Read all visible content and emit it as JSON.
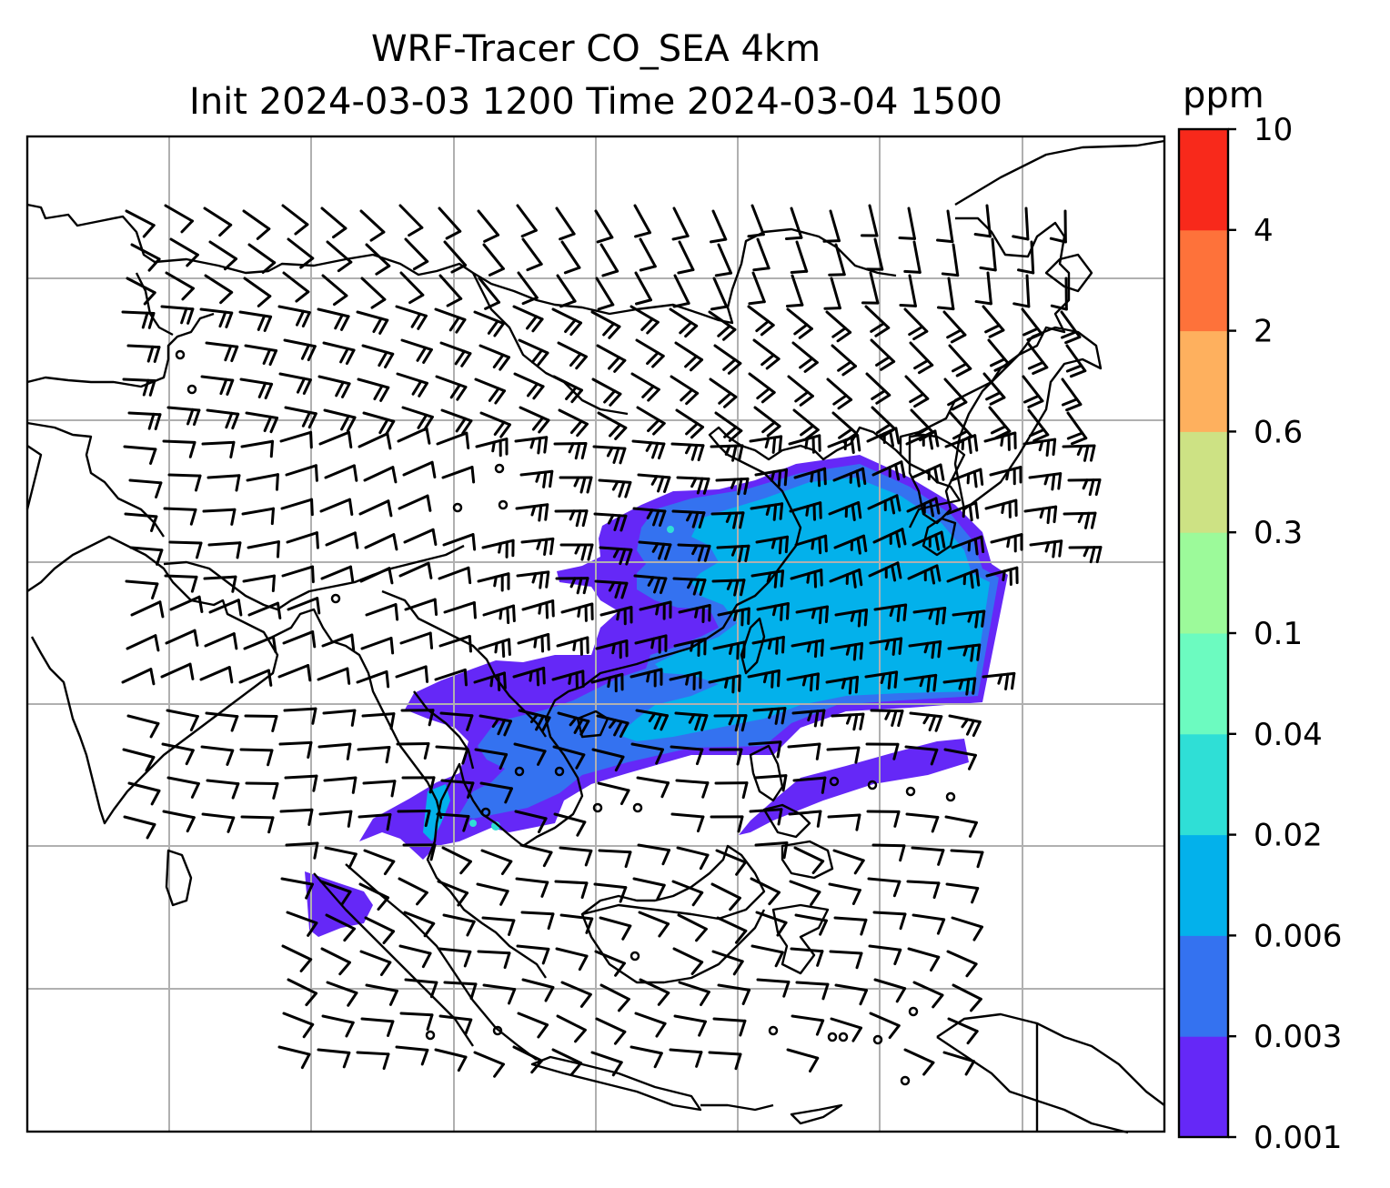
{
  "title": {
    "line1": "WRF-Tracer CO_SEA 4km",
    "line2": "Init 2024-03-03 1200 Time 2024-03-04 1500"
  },
  "colorbar": {
    "unit": "ppm",
    "levels": [
      "0.001",
      "0.003",
      "0.006",
      "0.02",
      "0.04",
      "0.1",
      "0.3",
      "0.6",
      "2",
      "4",
      "10"
    ],
    "colors": [
      "#6528f7",
      "#3472f0",
      "#03b1eb",
      "#2fdfd6",
      "#6cfbc0",
      "#9cfa9a",
      "#cde284",
      "#feb05e",
      "#fe723a",
      "#f8291b"
    ]
  },
  "map": {
    "gridline_color": "#b0b0b0",
    "coastline_color": "#000000",
    "wind_barb_color": "#000000"
  }
}
